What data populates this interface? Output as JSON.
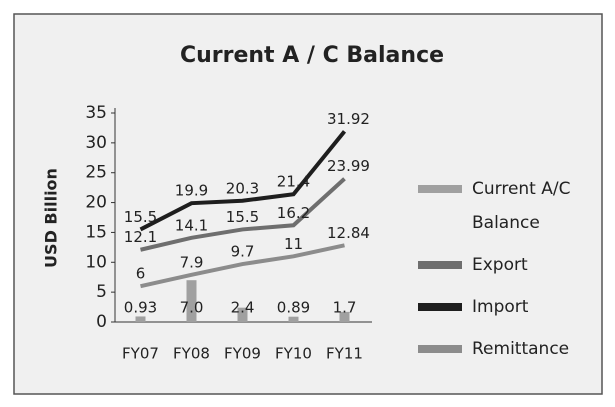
{
  "chart_data": {
    "type": "bar-line",
    "title": "Current A / C Balance",
    "y_label": "USD Billion",
    "categories": [
      "FY07",
      "FY08",
      "FY09",
      "FY10",
      "FY11"
    ],
    "series": [
      {
        "name": "Current A/C Balance",
        "type": "bar",
        "color": "#a0a0a0",
        "values": [
          0.93,
          7,
          2.4,
          0.89,
          1.7
        ],
        "value_labels": [
          "0.93",
          "7.0",
          "2.4",
          "0.89",
          "1.7"
        ]
      },
      {
        "name": "Export",
        "type": "line",
        "color": "#6e6e6e",
        "values": [
          12.1,
          14.1,
          15.5,
          16.2,
          23.99
        ]
      },
      {
        "name": "Import",
        "type": "line",
        "color": "#1e1e1e",
        "values": [
          15.5,
          19.9,
          20.3,
          21.4,
          31.92
        ]
      },
      {
        "name": "Remittance",
        "type": "line",
        "color": "#8c8c8c",
        "values": [
          6,
          7.9,
          9.7,
          11,
          12.84
        ]
      }
    ],
    "ylim": [
      0,
      35
    ],
    "yticks": [
      0,
      5,
      10,
      15,
      20,
      25,
      30,
      35
    ],
    "grid": false,
    "legend": "right"
  }
}
